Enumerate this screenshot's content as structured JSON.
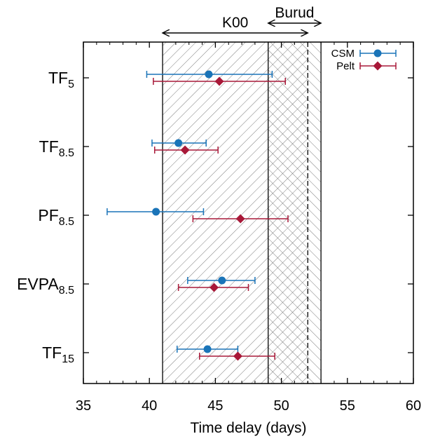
{
  "chart_data": {
    "type": "scatter",
    "xlabel": "Time delay (days)",
    "xlim": [
      35,
      60
    ],
    "xticks": [
      35,
      40,
      45,
      50,
      55,
      60
    ],
    "categories": [
      {
        "main": "TF",
        "sub": "5"
      },
      {
        "main": "TF",
        "sub": "8.5"
      },
      {
        "main": "PF",
        "sub": "8.5"
      },
      {
        "main": "EVPA",
        "sub": "8.5"
      },
      {
        "main": "TF",
        "sub": "15"
      }
    ],
    "series": [
      {
        "name": "CSM",
        "color": "#1a74b8",
        "marker": "circle",
        "points": [
          {
            "value": 44.5,
            "lo": 39.8,
            "hi": 49.3
          },
          {
            "value": 42.2,
            "lo": 40.2,
            "hi": 44.3
          },
          {
            "value": 40.5,
            "lo": 36.8,
            "hi": 44.1
          },
          {
            "value": 45.5,
            "lo": 42.9,
            "hi": 48.0
          },
          {
            "value": 44.4,
            "lo": 42.1,
            "hi": 46.7
          }
        ]
      },
      {
        "name": "Pelt",
        "color": "#a81838",
        "marker": "diamond",
        "points": [
          {
            "value": 45.3,
            "lo": 40.3,
            "hi": 50.3
          },
          {
            "value": 42.7,
            "lo": 40.4,
            "hi": 45.2
          },
          {
            "value": 46.9,
            "lo": 43.3,
            "hi": 50.5
          },
          {
            "value": 44.9,
            "lo": 42.2,
            "hi": 47.5
          },
          {
            "value": 46.7,
            "lo": 43.8,
            "hi": 49.5
          }
        ]
      }
    ],
    "ranges": [
      {
        "label": "K00",
        "from": 41.0,
        "to": 52.0,
        "hatch": "diagonal"
      },
      {
        "label": "Burud",
        "from": 49.0,
        "to": 53.0,
        "hatch": "cross"
      }
    ],
    "legend_position": "top-right"
  }
}
